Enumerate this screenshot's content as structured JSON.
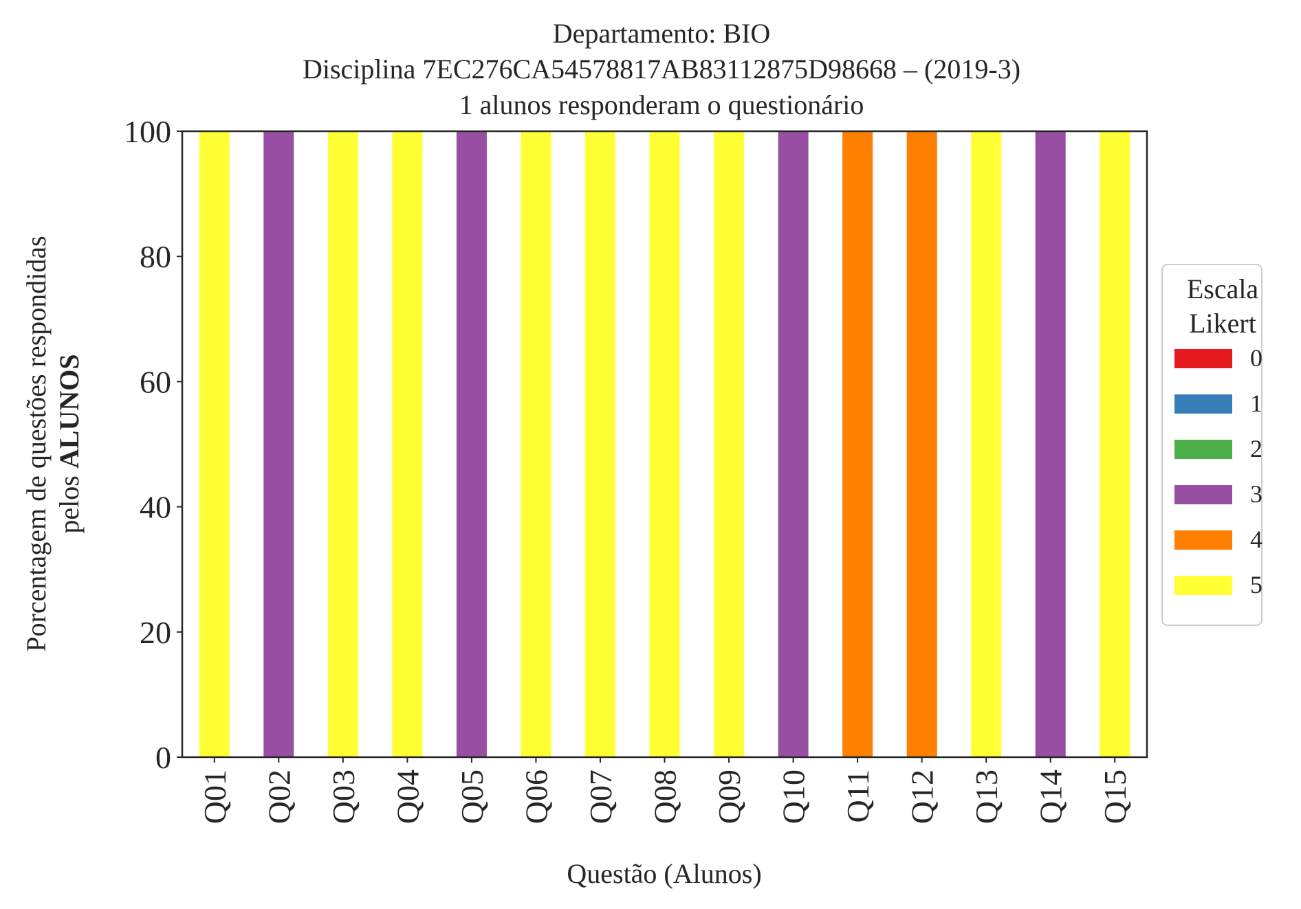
{
  "chart_data": {
    "type": "bar",
    "stacked": true,
    "title_lines": [
      "Departamento: BIO",
      "Disciplina 7EC276CA54578817AB83112875D98668 – (2019-3)",
      "1 alunos responderam o questionário"
    ],
    "xlabel": "Questão (Alunos)",
    "ylabel_line1": "Porcentagem de questões respondidas",
    "ylabel_line2_prefix": "pelos ",
    "ylabel_line2_bold": "ALUNOS",
    "ylim": [
      0,
      100
    ],
    "yticks": [
      0,
      20,
      40,
      60,
      80,
      100
    ],
    "categories": [
      "Q01",
      "Q02",
      "Q03",
      "Q04",
      "Q05",
      "Q06",
      "Q07",
      "Q08",
      "Q09",
      "Q10",
      "Q11",
      "Q12",
      "Q13",
      "Q14",
      "Q15"
    ],
    "legend": {
      "title_lines": [
        "Escala",
        "Likert"
      ],
      "placement": "center-right, outside plot"
    },
    "series": [
      {
        "name": "0",
        "color": "#e41a1c",
        "values": [
          0,
          0,
          0,
          0,
          0,
          0,
          0,
          0,
          0,
          0,
          0,
          0,
          0,
          0,
          0
        ]
      },
      {
        "name": "1",
        "color": "#377eb8",
        "values": [
          0,
          0,
          0,
          0,
          0,
          0,
          0,
          0,
          0,
          0,
          0,
          0,
          0,
          0,
          0
        ]
      },
      {
        "name": "2",
        "color": "#4daf4a",
        "values": [
          0,
          0,
          0,
          0,
          0,
          0,
          0,
          0,
          0,
          0,
          0,
          0,
          0,
          0,
          0
        ]
      },
      {
        "name": "3",
        "color": "#984ea3",
        "values": [
          0,
          100,
          0,
          0,
          100,
          0,
          0,
          0,
          0,
          100,
          0,
          0,
          0,
          100,
          0
        ]
      },
      {
        "name": "4",
        "color": "#ff7f00",
        "values": [
          0,
          0,
          0,
          0,
          0,
          0,
          0,
          0,
          0,
          0,
          100,
          100,
          0,
          0,
          0
        ]
      },
      {
        "name": "5",
        "color": "#ffff33",
        "values": [
          100,
          0,
          100,
          100,
          0,
          100,
          100,
          100,
          100,
          0,
          0,
          0,
          100,
          0,
          100
        ]
      }
    ],
    "grid": false
  }
}
